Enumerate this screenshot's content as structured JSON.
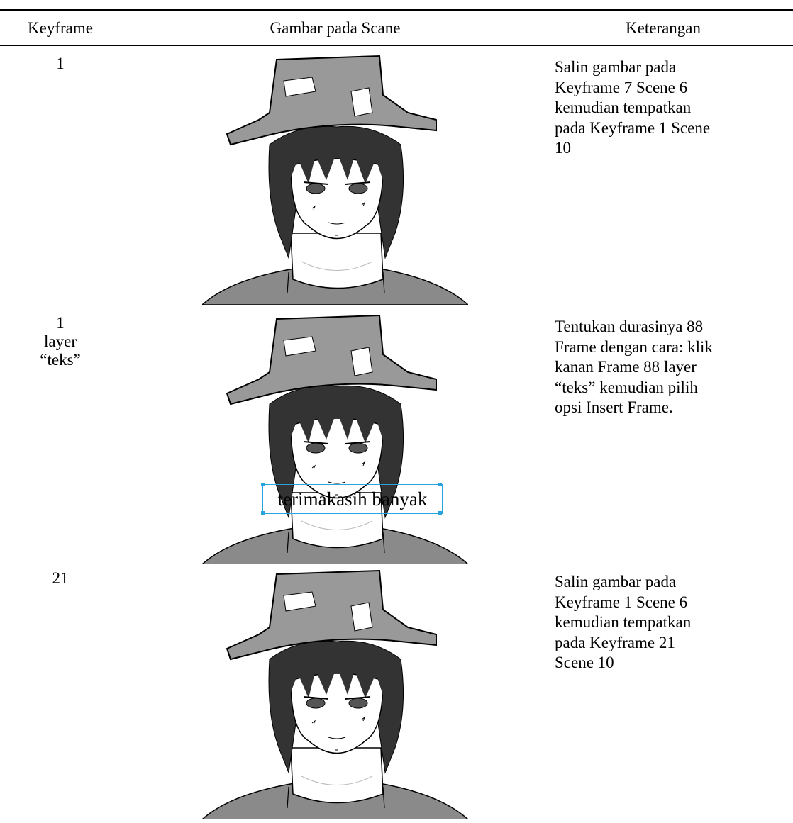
{
  "table": {
    "headers": [
      "Keyframe",
      "Gambar pada Scane",
      "Keterangan"
    ],
    "rows": [
      {
        "keyframe": [
          "1"
        ],
        "description": [
          "Salin gambar pada",
          "Keyframe 7 Scene 6",
          "kemudian tempatkan",
          "pada Keyframe 1 Scene",
          "10"
        ]
      },
      {
        "keyframe": [
          "1",
          "layer",
          "“teks”"
        ],
        "image_text": "terimakasih banyak",
        "description": [
          "Tentukan durasinya 88",
          "Frame dengan cara: klik",
          "kanan Frame 88 layer",
          "“teks” kemudian pilih",
          "opsi Insert Frame."
        ]
      },
      {
        "keyframe": [
          "21"
        ],
        "description": [
          "Salin gambar pada",
          "Keyframe 1 Scene 6",
          "kemudian tempatkan",
          "pada Keyframe 21",
          "Scene 10"
        ]
      }
    ]
  }
}
